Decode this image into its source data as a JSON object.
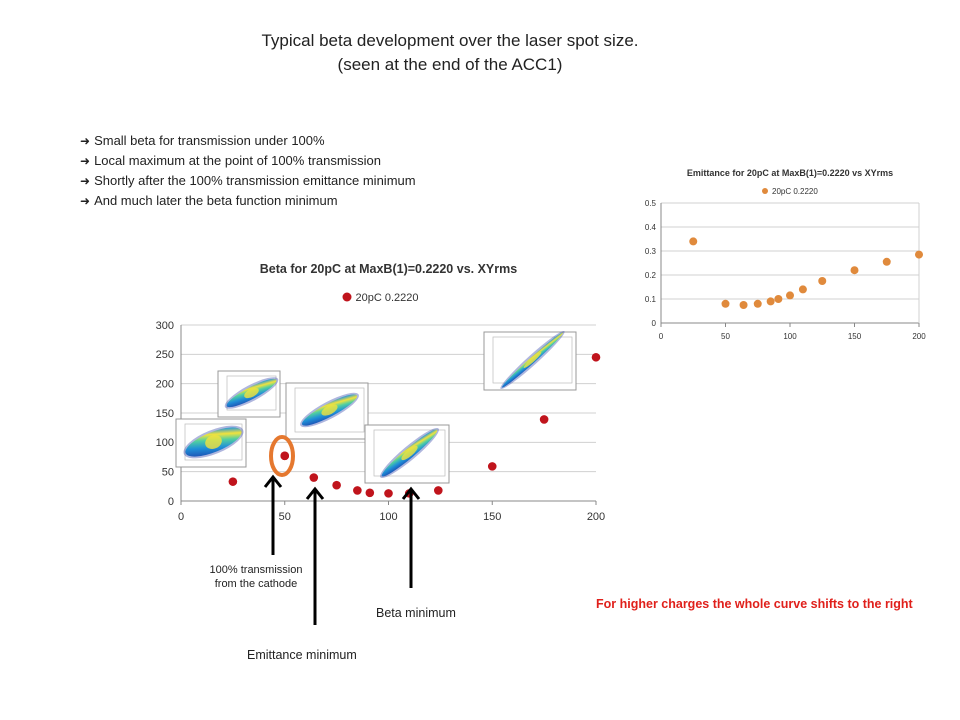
{
  "title": {
    "line1": "Typical beta development over the laser spot size.",
    "line2": "(seen at the end of the ACC1)"
  },
  "bullets": [
    "Small beta for transmission under 100%",
    "Local maximum at the point of 100% transmission",
    "Shortly after the 100% transmission emittance minimum",
    "And much later the beta function minimum"
  ],
  "icons": {
    "bullet": "arrow-right-icon",
    "annotation": "arrow-up-icon",
    "highlight": "ellipse-highlight-icon"
  },
  "colors": {
    "beta_marker": "#c0141c",
    "emittance_marker": "#e08a3c",
    "highlight": "#e5782f",
    "note_red": "#e0201b"
  },
  "chart_data": [
    {
      "type": "scatter",
      "title": "Beta for 20pC at MaxB(1)=0.2220 vs. XYrms",
      "legend": {
        "placement": "top",
        "entries": [
          "20pC 0.2220"
        ]
      },
      "xlim": [
        0,
        200
      ],
      "ylim": [
        0,
        300
      ],
      "xticks": [
        0,
        50,
        100,
        150,
        200
      ],
      "yticks": [
        0,
        50,
        100,
        150,
        200,
        250,
        300
      ],
      "grid": true,
      "series": [
        {
          "name": "20pC 0.2220",
          "x": [
            25,
            50,
            64,
            75,
            85,
            91,
            100,
            110,
            124,
            150,
            175,
            200
          ],
          "y": [
            33,
            77,
            40,
            27,
            18,
            14,
            13,
            13,
            18,
            59,
            139,
            245
          ]
        }
      ]
    },
    {
      "type": "scatter",
      "title": "Emittance for 20pC at MaxB(1)=0.2220 vs XYrms",
      "legend": {
        "placement": "top",
        "entries": [
          "20pC 0.2220"
        ]
      },
      "xlim": [
        0,
        200
      ],
      "ylim": [
        0,
        0.5
      ],
      "xticks": [
        0,
        50,
        100,
        150,
        200
      ],
      "yticks": [
        0,
        0.1,
        0.2,
        0.3,
        0.4,
        0.5
      ],
      "ytick_labels": [
        "0",
        "0.1",
        "0.2",
        "0.3",
        "0.4",
        "0.5"
      ],
      "grid": true,
      "series": [
        {
          "name": "20pC 0.2220",
          "x": [
            25,
            50,
            64,
            75,
            85,
            91,
            100,
            110,
            125,
            150,
            175,
            200
          ],
          "y": [
            0.34,
            0.08,
            0.075,
            0.08,
            0.09,
            0.1,
            0.115,
            0.14,
            0.175,
            0.22,
            0.255,
            0.285
          ]
        }
      ]
    }
  ],
  "annotations": {
    "transmission_line1": "100% transmission",
    "transmission_line2": "from the cathode",
    "emittance_minimum": "Emittance minimum",
    "beta_minimum": "Beta minimum",
    "shift_note": "For higher charges the whole curve shifts to the right"
  }
}
